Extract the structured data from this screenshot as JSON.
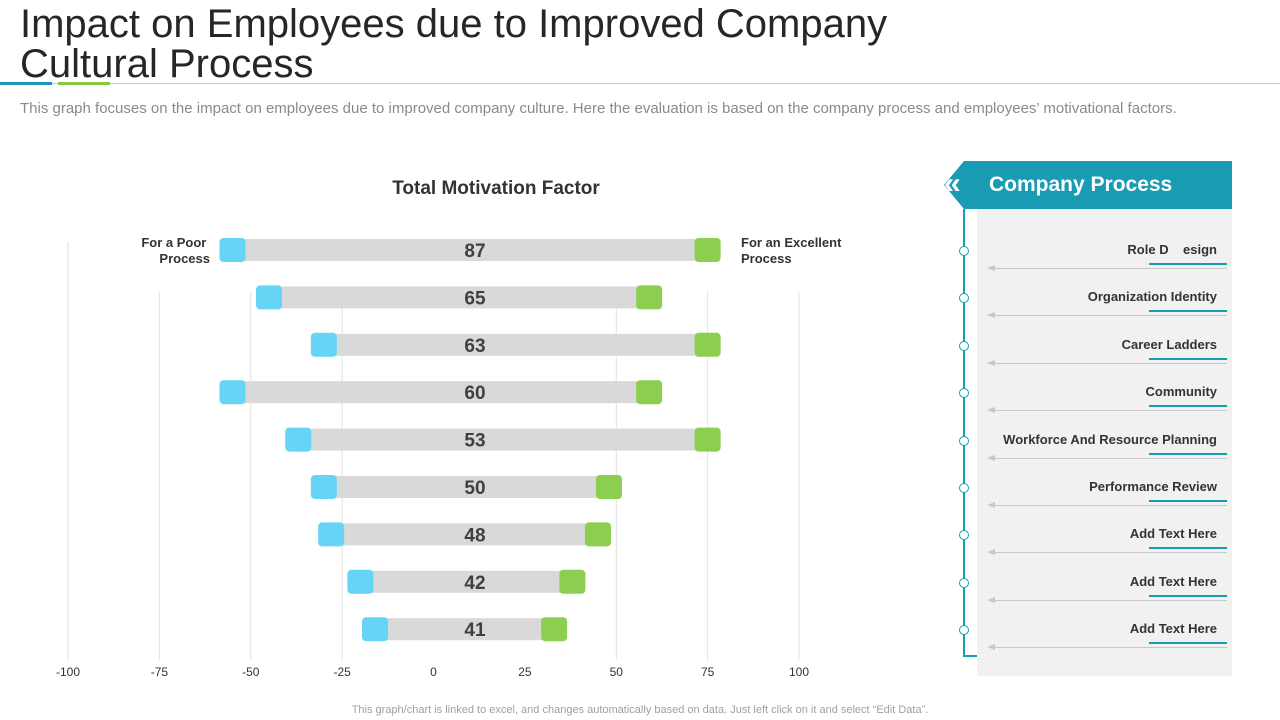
{
  "header": {
    "title_line1": "Impact on Employees due to Improved Company",
    "title_line2": "Cultural Process",
    "subtitle": "This graph focuses on the impact on employees due to improved company culture.  Here the evaluation is based on the company process and employees’ motivational factors.",
    "footnote": "This graph/chart is linked to excel,  and changes automatically based on data. Just left click on it and select “Edit Data”."
  },
  "colors": {
    "accent": "#1a9bb4",
    "poor": "#66d4f5",
    "excellent": "#8ccf50",
    "bar": "#d9d9d9"
  },
  "chart_data": {
    "type": "bar",
    "title": "Total Motivation Factor",
    "left_label_line1": "For a Poor",
    "left_label_line2": "Process",
    "right_label_line1": "For an Excellent",
    "right_label_line2": "Process",
    "xlim": [
      -100,
      100
    ],
    "xticks": [
      "-100",
      "-75",
      "-50",
      "-25",
      "0",
      "25",
      "50",
      "75",
      "100"
    ],
    "series": [
      {
        "name": "For a Poor Process",
        "values": [
          -55,
          -45,
          -30,
          -55,
          -37,
          -30,
          -28,
          -20,
          -16
        ]
      },
      {
        "name": "For an Excellent Process",
        "values": [
          75,
          59,
          75,
          59,
          75,
          48,
          45,
          38,
          33
        ]
      }
    ],
    "totals": [
      87,
      65,
      63,
      60,
      53,
      50,
      48,
      42,
      41
    ]
  },
  "panel": {
    "title": "Company Process",
    "items": [
      "Role D    esign",
      "Organization Identity",
      "Career Ladders",
      "Community",
      "Workforce And Resource Planning",
      "Performance Review",
      "Add Text Here",
      "Add Text Here",
      "Add Text Here"
    ]
  }
}
